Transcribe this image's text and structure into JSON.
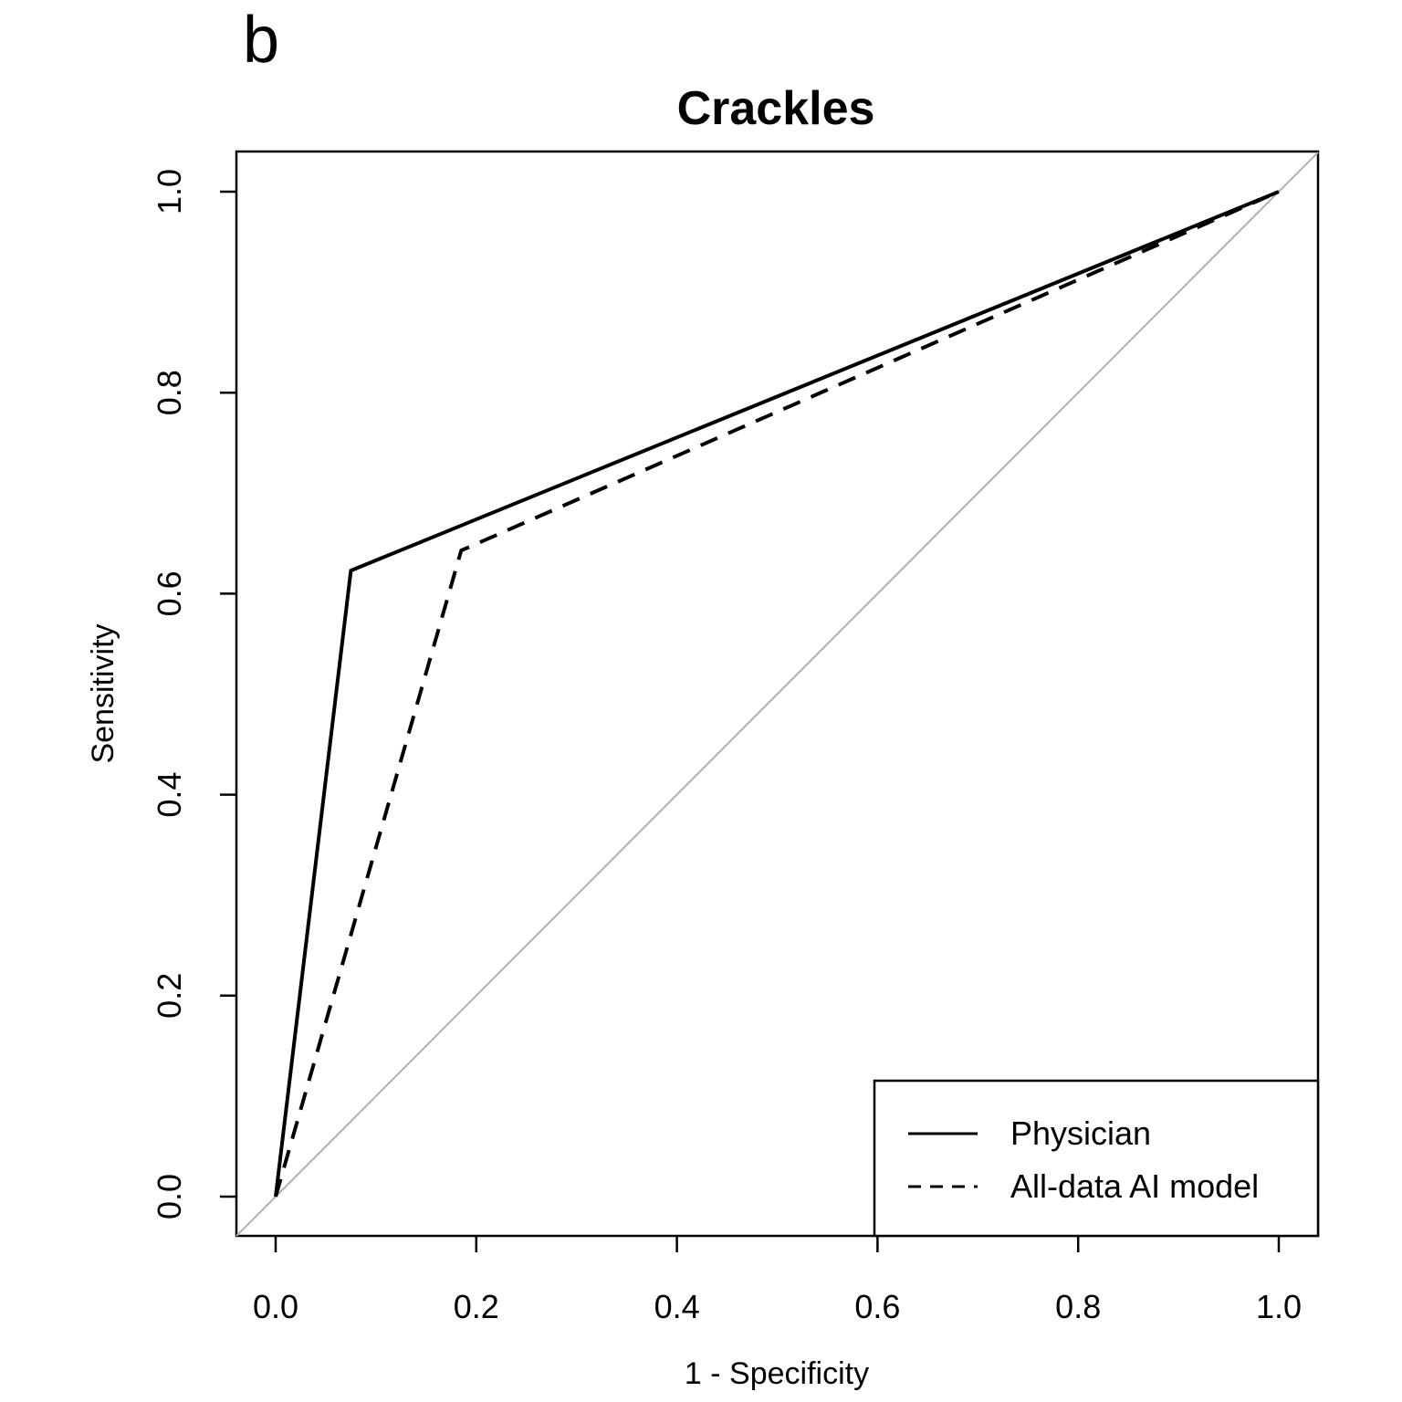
{
  "panel_label": "b",
  "chart_data": {
    "type": "line",
    "title": "Crackles",
    "xlabel": "1 - Specificity",
    "ylabel": "Sensitivity",
    "xlim": [
      0.0,
      1.0
    ],
    "ylim": [
      0.0,
      1.0
    ],
    "x_ticks": [
      "0.0",
      "0.2",
      "0.4",
      "0.6",
      "0.8",
      "1.0"
    ],
    "y_ticks": [
      "0.0",
      "0.2",
      "0.4",
      "0.6",
      "0.8",
      "1.0"
    ],
    "grid": false,
    "legend_position": "bottom-right",
    "series": [
      {
        "name": "Physician",
        "line_style": "solid",
        "points": [
          [
            0.0,
            0.0
          ],
          [
            0.075,
            0.623
          ],
          [
            1.0,
            1.0
          ]
        ]
      },
      {
        "name": "All-data AI model",
        "line_style": "dashed",
        "points": [
          [
            0.0,
            0.0
          ],
          [
            0.185,
            0.643
          ],
          [
            1.0,
            1.0
          ]
        ]
      }
    ],
    "reference_line": {
      "line_style": "solid",
      "color": "#b0b0b0",
      "points": [
        [
          0.0,
          0.0
        ],
        [
          1.0,
          1.0
        ]
      ]
    }
  }
}
